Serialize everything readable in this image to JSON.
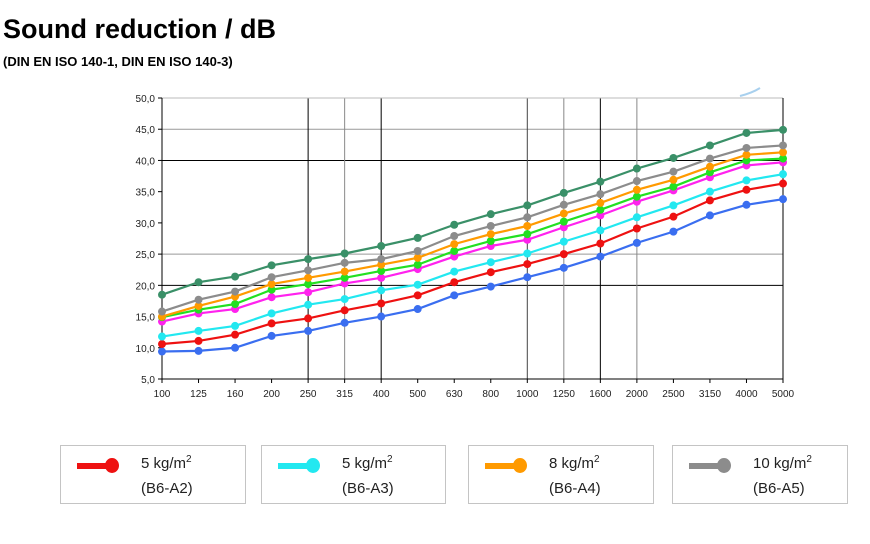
{
  "chart_data": {
    "type": "line",
    "title": "Sound reduction / dB",
    "subtitle": "(DIN EN ISO 140-1, DIN EN ISO 140-3)",
    "xlabel": "",
    "ylabel": "",
    "ylim": [
      5,
      50
    ],
    "yticks": [
      "5,0",
      "10,0",
      "15,0",
      "20,0",
      "25,0",
      "30,0",
      "35,0",
      "40,0",
      "45,0",
      "50,0"
    ],
    "categories": [
      "100",
      "125",
      "160",
      "200",
      "250",
      "315",
      "400",
      "500",
      "630",
      "800",
      "1000",
      "1250",
      "1600",
      "2000",
      "2500",
      "3150",
      "4000",
      "5000"
    ],
    "series": [
      {
        "name": "",
        "color": "#3a9068",
        "values": [
          18.5,
          20.5,
          21.4,
          23.2,
          24.2,
          25.1,
          26.3,
          27.6,
          29.7,
          31.4,
          32.8,
          34.8,
          36.6,
          38.7,
          40.4,
          42.4,
          44.4,
          44.9
        ]
      },
      {
        "name": "10 kg/m2 (B6-A5)",
        "color": "#8c8c8c",
        "values": [
          15.8,
          17.7,
          19.0,
          21.3,
          22.4,
          23.6,
          24.2,
          25.5,
          27.9,
          29.5,
          30.9,
          32.9,
          34.6,
          36.7,
          38.2,
          40.3,
          42.0,
          42.4
        ]
      },
      {
        "name": "8 kg/m2 (B6-A4)",
        "color": "#ff9a00",
        "values": [
          15.0,
          16.7,
          18.2,
          20.2,
          21.2,
          22.2,
          23.3,
          24.4,
          26.6,
          28.2,
          29.5,
          31.5,
          33.2,
          35.3,
          36.9,
          39.0,
          40.9,
          41.3
        ]
      },
      {
        "name": "",
        "color": "#22e022",
        "values": [
          14.9,
          16.1,
          17.0,
          19.3,
          20.2,
          21.2,
          22.3,
          23.3,
          25.5,
          27.1,
          28.2,
          30.2,
          32.1,
          34.2,
          35.8,
          38.1,
          40.0,
          40.3
        ]
      },
      {
        "name": "",
        "color": "#ff22ee",
        "values": [
          14.2,
          15.5,
          16.2,
          18.1,
          18.9,
          20.3,
          21.2,
          22.6,
          24.6,
          26.3,
          27.3,
          29.3,
          31.2,
          33.4,
          35.2,
          37.3,
          39.2,
          39.7
        ]
      },
      {
        "name": "5 kg/m2 (B6-A3)",
        "color": "#22e8f0",
        "values": [
          11.8,
          12.7,
          13.5,
          15.5,
          16.9,
          17.8,
          19.2,
          20.1,
          22.2,
          23.7,
          25.1,
          27.0,
          28.8,
          30.9,
          32.8,
          35.0,
          36.8,
          37.8
        ]
      },
      {
        "name": "5 kg/m2 (B6-A2)",
        "color": "#ee1111",
        "values": [
          10.6,
          11.1,
          12.1,
          13.9,
          14.7,
          16.0,
          17.1,
          18.4,
          20.5,
          22.1,
          23.4,
          25.0,
          26.7,
          29.1,
          31.0,
          33.6,
          35.3,
          36.3
        ]
      },
      {
        "name": "",
        "color": "#3a6ef0",
        "values": [
          9.4,
          9.5,
          10.0,
          11.9,
          12.7,
          14.0,
          15.0,
          16.2,
          18.4,
          19.8,
          21.3,
          22.8,
          24.6,
          26.8,
          28.6,
          31.2,
          32.9,
          33.8
        ]
      }
    ],
    "legend_placement": "bottom"
  },
  "legend": [
    {
      "mass": "5 kg/m",
      "sup": "2",
      "code": "(B6-A2)",
      "color": "#ee1111"
    },
    {
      "mass": "5 kg/m",
      "sup": "2",
      "code": "(B6-A3)",
      "color": "#22e8f0"
    },
    {
      "mass": "8 kg/m",
      "sup": "2",
      "code": "(B6-A4)",
      "color": "#ff9a00"
    },
    {
      "mass": "10 kg/m",
      "sup": "2",
      "code": "(B6-A5)",
      "color": "#8c8c8c"
    }
  ]
}
